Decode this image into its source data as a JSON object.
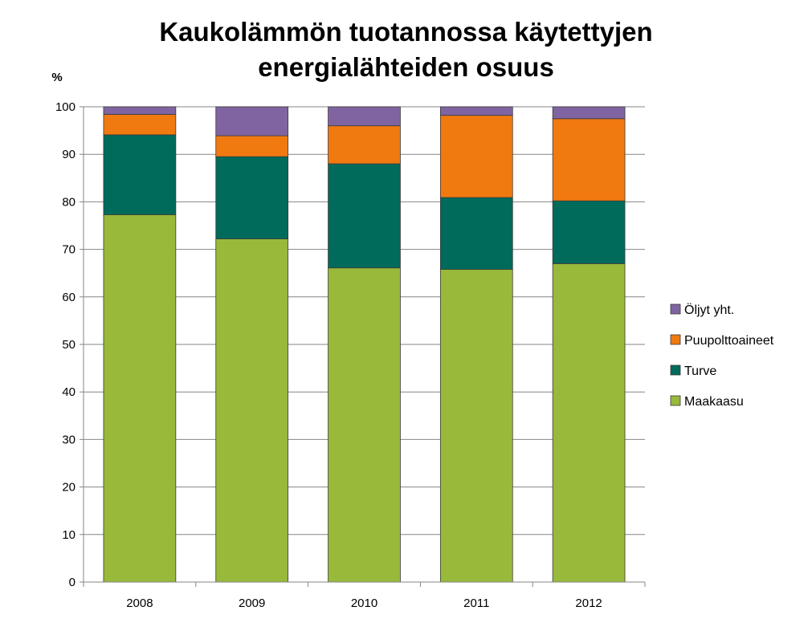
{
  "chart_data": {
    "type": "bar",
    "stacked": true,
    "title": "Kaukolämmön tuotannossa käytettyjen\nenergialähteiden osuus",
    "ylabel": "%",
    "xlabel": "",
    "categories": [
      "2008",
      "2009",
      "2010",
      "2011",
      "2012"
    ],
    "ylim": [
      0,
      100
    ],
    "yticks": [
      0,
      10,
      20,
      30,
      40,
      50,
      60,
      70,
      80,
      90,
      100
    ],
    "grid": true,
    "legend_position": "right",
    "series": [
      {
        "name": "Maakaasu",
        "color": "#98b93a",
        "values": [
          77.3,
          72.2,
          66.1,
          65.8,
          67.0
        ]
      },
      {
        "name": "Turve",
        "color": "#006b5b",
        "values": [
          16.8,
          17.3,
          21.9,
          15.1,
          13.2
        ]
      },
      {
        "name": "Puupolttoaineet",
        "color": "#f07a10",
        "values": [
          4.3,
          4.4,
          8.0,
          17.3,
          17.3
        ]
      },
      {
        "name": "Öljyt yht.",
        "color": "#8064a2",
        "values": [
          1.6,
          6.1,
          4.0,
          1.8,
          2.5
        ]
      }
    ]
  }
}
